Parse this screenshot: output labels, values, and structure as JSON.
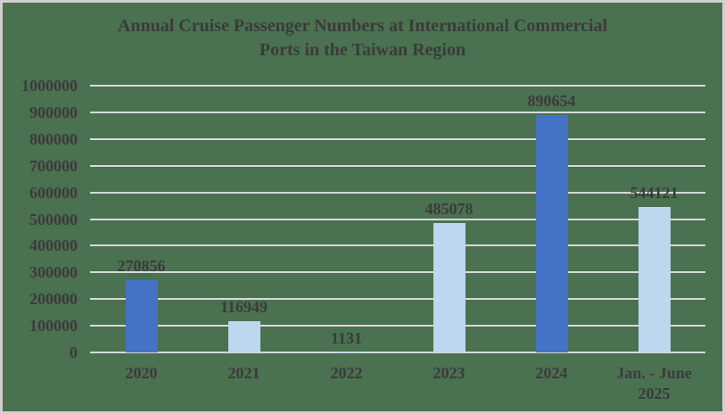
{
  "title": {
    "line1": "Annual Cruise Passenger Numbers at International Commercial",
    "line2": "Ports in the Taiwan Region"
  },
  "chart_data": {
    "type": "bar",
    "title": "Annual Cruise Passenger Numbers at International Commercial Ports in the Taiwan Region",
    "categories": [
      "2020",
      "2021",
      "2022",
      "2023",
      "2024",
      "Jan. - June 2025"
    ],
    "values": [
      270856,
      116949,
      1131,
      485078,
      890654,
      544121
    ],
    "data_labels": [
      "270856",
      "116949",
      "1131",
      "485078",
      "890654",
      "544121"
    ],
    "bar_colors": [
      "#4472C4",
      "#BDD7EE",
      "#BDD7EE",
      "#BDD7EE",
      "#4472C4",
      "#BDD7EE"
    ],
    "xlabel": "",
    "ylabel": "",
    "ylim": [
      0,
      1000000
    ],
    "ytick_step": 100000,
    "ytick_labels": [
      "0",
      "100000",
      "200000",
      "300000",
      "400000",
      "500000",
      "600000",
      "700000",
      "800000",
      "900000",
      "1000000"
    ],
    "grid": true,
    "legend": "none"
  },
  "colors": {
    "background": "#4A7150",
    "border": "#D1CFCF",
    "gridline": "#D9D9D9",
    "text": "#3B3B3B",
    "bar_dark": "#4472C4",
    "bar_light": "#BDD7EE"
  }
}
